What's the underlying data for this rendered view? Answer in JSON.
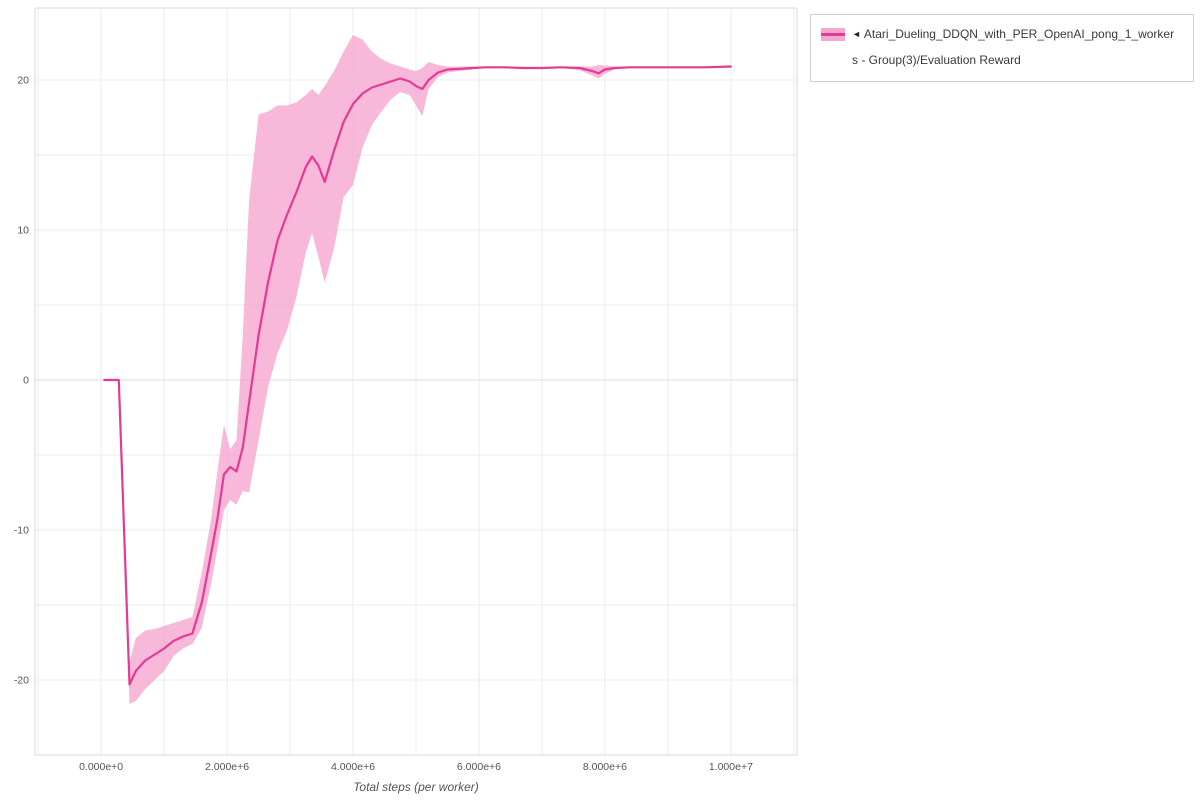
{
  "page": {
    "background": "#ffffff"
  },
  "legend": {
    "toggle_icon": "◄",
    "label_line1": "Atari_Dueling_DDQN_with_PER_OpenAI_pong_1_worker",
    "label_line2": "s - Group(3)/Evaluation Reward"
  },
  "chart_data": {
    "type": "line",
    "title": "",
    "xlabel": "Total steps (per worker)",
    "ylabel": "",
    "xlim": [
      -1050000,
      11050000
    ],
    "ylim": [
      -25,
      24.8
    ],
    "grid": {
      "x_step": 1000000,
      "y_step": 5,
      "color": "#ebebeb",
      "zero_color": "#dcdcdc",
      "border_color": "#d8d8d8"
    },
    "tick_color": "#545454",
    "legend_position": "top-right",
    "x_ticks": [
      {
        "value": 0,
        "label": "0.000e+0"
      },
      {
        "value": 2000000,
        "label": "2.000e+6"
      },
      {
        "value": 4000000,
        "label": "4.000e+6"
      },
      {
        "value": 6000000,
        "label": "6.000e+6"
      },
      {
        "value": 8000000,
        "label": "8.000e+6"
      },
      {
        "value": 10000000,
        "label": "1.000e+7"
      }
    ],
    "y_ticks": [
      {
        "value": 20,
        "label": "20"
      },
      {
        "value": 10,
        "label": "10"
      },
      {
        "value": 0,
        "label": "0"
      },
      {
        "value": -10,
        "label": "-10"
      },
      {
        "value": -20,
        "label": "-20"
      }
    ],
    "series": [
      {
        "name": "Atari_Dueling_DDQN_with_PER_OpenAI_pong_1_workers - Group(3)/Evaluation Reward",
        "color": "#e33a96",
        "band_color": "#f5a6d1",
        "band_opacity": 0.8,
        "x": [
          50000,
          280000,
          450000,
          550000,
          700000,
          850000,
          1000000,
          1150000,
          1300000,
          1450000,
          1600000,
          1750000,
          1850000,
          1950000,
          2050000,
          2150000,
          2250000,
          2350000,
          2500000,
          2650000,
          2800000,
          2950000,
          3100000,
          3250000,
          3350000,
          3450000,
          3550000,
          3700000,
          3850000,
          4000000,
          4150000,
          4300000,
          4450000,
          4600000,
          4750000,
          4900000,
          5000000,
          5100000,
          5200000,
          5350000,
          5500000,
          5700000,
          5900000,
          6100000,
          6400000,
          6700000,
          7000000,
          7300000,
          7600000,
          7800000,
          7900000,
          8000000,
          8150000,
          8400000,
          8800000,
          9200000,
          9600000,
          10000000
        ],
        "mean": [
          0,
          0,
          -20.3,
          -19.4,
          -18.7,
          -18.3,
          -17.9,
          -17.4,
          -17.1,
          -16.9,
          -14.8,
          -11.5,
          -9.2,
          -6.3,
          -5.8,
          -6.1,
          -4.5,
          -1.5,
          3,
          6.5,
          9.3,
          11,
          12.5,
          14.2,
          14.9,
          14.3,
          13.2,
          15.3,
          17.2,
          18.4,
          19.1,
          19.5,
          19.7,
          19.9,
          20.1,
          19.9,
          19.6,
          19.4,
          20,
          20.5,
          20.7,
          20.75,
          20.8,
          20.85,
          20.85,
          20.8,
          20.8,
          20.85,
          20.8,
          20.6,
          20.45,
          20.7,
          20.8,
          20.85,
          20.85,
          20.85,
          20.85,
          20.9
        ],
        "lower": [
          0,
          0,
          -21.6,
          -21.4,
          -20.6,
          -20,
          -19.4,
          -18.4,
          -17.9,
          -17.6,
          -16.5,
          -13.5,
          -11.2,
          -8.7,
          -8,
          -8.3,
          -7.4,
          -7.5,
          -4,
          -0.5,
          1.8,
          3.3,
          5.5,
          8.5,
          9.8,
          8.2,
          6.5,
          8.8,
          12.2,
          13,
          15.5,
          17,
          17.9,
          18.7,
          19.2,
          19,
          18.3,
          17.6,
          19.4,
          20.2,
          20.5,
          20.6,
          20.7,
          20.8,
          20.8,
          20.75,
          20.75,
          20.8,
          20.65,
          20.3,
          20.1,
          20.4,
          20.7,
          20.8,
          20.8,
          20.8,
          20.8,
          20.85
        ],
        "upper": [
          0,
          0,
          -18.8,
          -17.2,
          -16.7,
          -16.6,
          -16.4,
          -16.2,
          -16,
          -15.8,
          -12.8,
          -9.2,
          -6,
          -3,
          -4.6,
          -4,
          3,
          12,
          17.7,
          17.9,
          18.3,
          18.3,
          18.5,
          19,
          19.4,
          19,
          19.6,
          20.6,
          21.9,
          23,
          22.7,
          21.9,
          21.4,
          21.1,
          20.9,
          20.7,
          20.6,
          20.8,
          21.2,
          21,
          20.9,
          20.9,
          20.9,
          20.9,
          20.9,
          20.85,
          20.85,
          20.9,
          20.9,
          20.9,
          21,
          20.95,
          20.9,
          20.9,
          20.9,
          20.9,
          20.9,
          20.95
        ]
      }
    ]
  }
}
